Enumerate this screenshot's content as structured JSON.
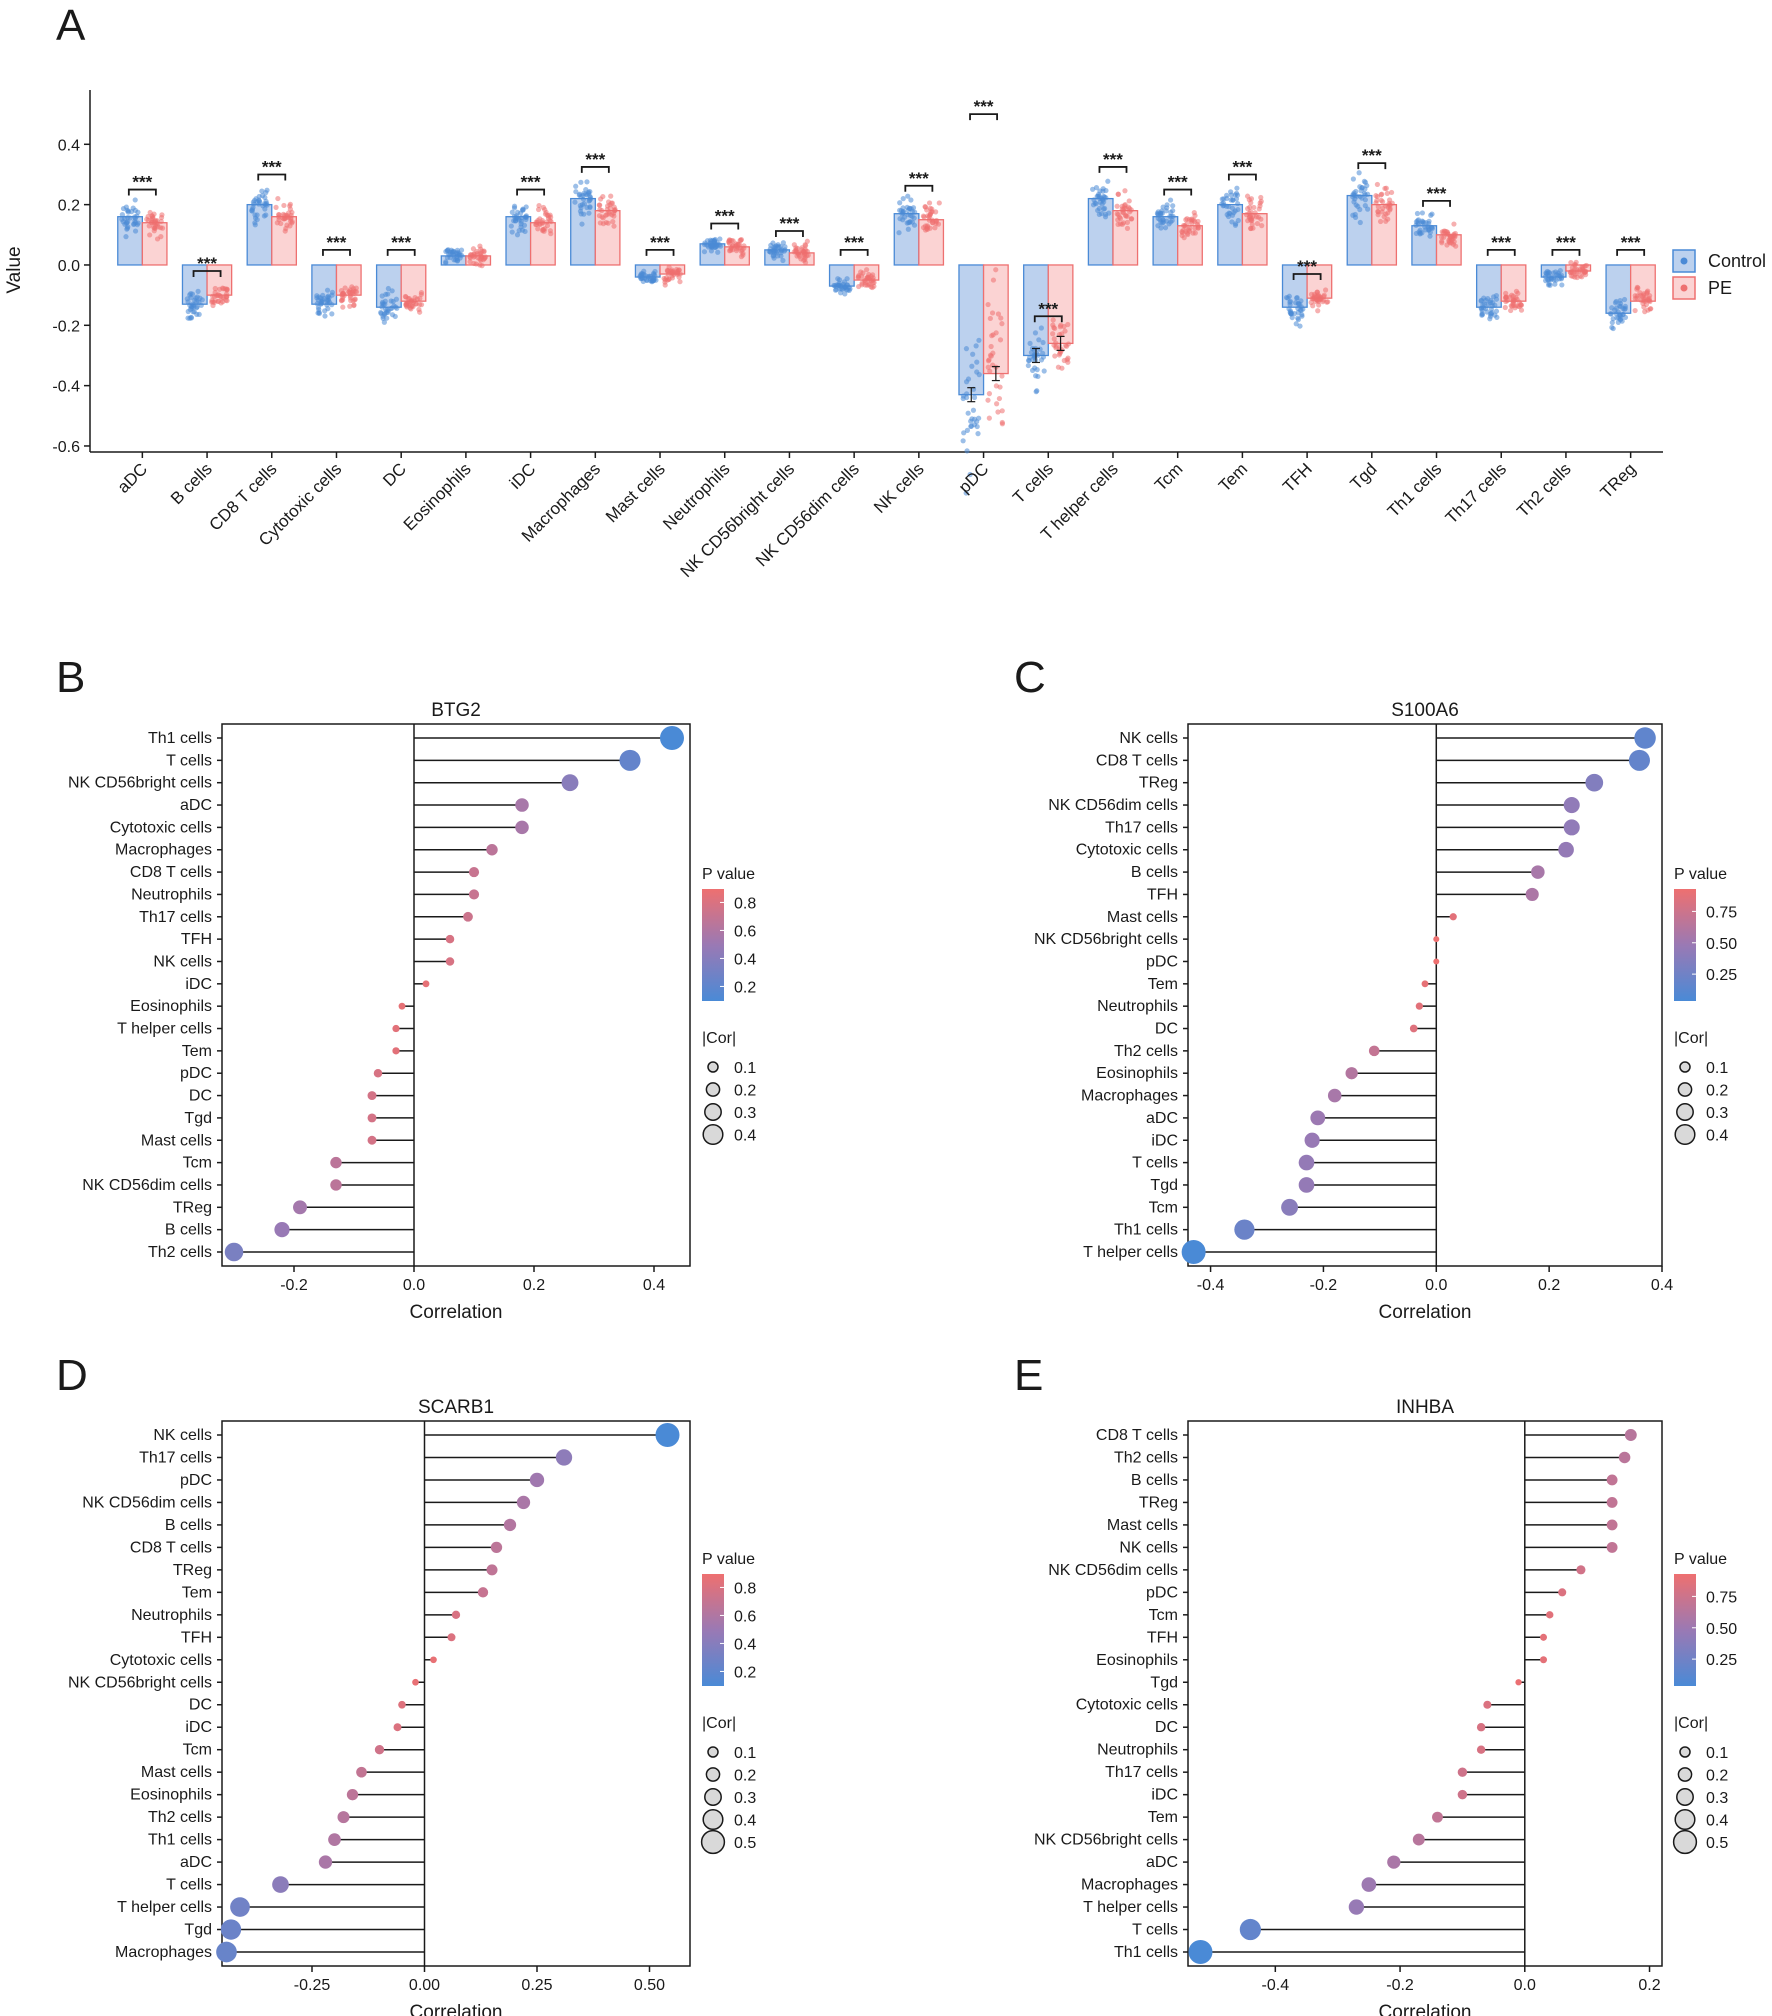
{
  "colors": {
    "control": "#4a8ad6",
    "pe": "#ee7070",
    "mid": "#9a79b4",
    "axis": "#1a1a1a"
  },
  "chart_data": [
    {
      "panel": "A",
      "type": "bar",
      "title": "",
      "xlabel": "",
      "ylabel": "Value",
      "ylim": [
        -0.62,
        0.58
      ],
      "yticks": [
        0.4,
        0.2,
        0.0,
        -0.2,
        -0.4,
        -0.6
      ],
      "ytick_labels": [
        "0.4",
        "0.2",
        "0.0",
        "-0.2",
        "-0.4",
        "-0.6"
      ],
      "significance_label": "***",
      "legend": [
        "Control",
        "PE"
      ],
      "categories": [
        "aDC",
        "B cells",
        "CD8 T cells",
        "Cytotoxic cells",
        "DC",
        "Eosinophils",
        "iDC",
        "Macrophages",
        "Mast cells",
        "Neutrophils",
        "NK CD56bright cells",
        "NK CD56dim cells",
        "NK cells",
        "pDC",
        "T cells",
        "T helper cells",
        "Tcm",
        "Tem",
        "TFH",
        "Tgd",
        "Th1 cells",
        "Th17 cells",
        "Th2 cells",
        "TReg"
      ],
      "significant": [
        true,
        true,
        true,
        true,
        true,
        false,
        true,
        true,
        true,
        true,
        true,
        true,
        true,
        true,
        true,
        true,
        true,
        true,
        true,
        true,
        true,
        true,
        true,
        true
      ],
      "series": [
        {
          "name": "Control",
          "values": [
            0.16,
            -0.13,
            0.2,
            -0.13,
            -0.14,
            0.03,
            0.16,
            0.22,
            -0.04,
            0.07,
            0.05,
            -0.07,
            0.17,
            -0.43,
            -0.3,
            0.22,
            0.16,
            0.2,
            -0.14,
            0.23,
            0.13,
            -0.14,
            -0.04,
            -0.16
          ]
        },
        {
          "name": "PE",
          "values": [
            0.14,
            -0.1,
            0.16,
            -0.1,
            -0.12,
            0.03,
            0.14,
            0.18,
            -0.03,
            0.06,
            0.04,
            -0.05,
            0.15,
            -0.36,
            -0.26,
            0.18,
            0.13,
            0.17,
            -0.11,
            0.2,
            0.1,
            -0.12,
            -0.02,
            -0.12
          ]
        }
      ]
    },
    {
      "panel": "B",
      "type": "lollipop",
      "title": "BTG2",
      "xlabel": "Correlation",
      "xlim": [
        -0.32,
        0.46
      ],
      "xticks": [
        -0.2,
        0.0,
        0.2,
        0.4
      ],
      "xtick_labels": [
        "-0.2",
        "0.0",
        "0.2",
        "0.4"
      ],
      "legend_p_title": "P value",
      "legend_p_ticks": [
        "0.8",
        "0.6",
        "0.4",
        "0.2"
      ],
      "legend_cor_title": "|Cor|",
      "legend_cor_ticks": [
        "0.1",
        "0.2",
        "0.3",
        "0.4"
      ],
      "categories": [
        "Th1 cells",
        "T cells",
        "NK CD56bright cells",
        "aDC",
        "Cytotoxic cells",
        "Macrophages",
        "CD8 T cells",
        "Neutrophils",
        "Th17 cells",
        "TFH",
        "NK cells",
        "iDC",
        "Eosinophils",
        "T helper cells",
        "Tem",
        "pDC",
        "DC",
        "Tgd",
        "Mast cells",
        "Tcm",
        "NK CD56dim cells",
        "TReg",
        "B cells",
        "Th2 cells"
      ],
      "values": [
        0.43,
        0.36,
        0.26,
        0.18,
        0.18,
        0.13,
        0.1,
        0.1,
        0.09,
        0.06,
        0.06,
        0.02,
        -0.02,
        -0.03,
        -0.03,
        -0.06,
        -0.07,
        -0.07,
        -0.07,
        -0.13,
        -0.13,
        -0.19,
        -0.22,
        -0.3
      ]
    },
    {
      "panel": "C",
      "type": "lollipop",
      "title": "S100A6",
      "xlabel": "Correlation",
      "xlim": [
        -0.44,
        0.4
      ],
      "xticks": [
        -0.4,
        -0.2,
        0.0,
        0.2,
        0.4
      ],
      "xtick_labels": [
        "-0.4",
        "-0.2",
        "0.0",
        "0.2",
        "0.4"
      ],
      "legend_p_title": "P value",
      "legend_p_ticks": [
        "0.75",
        "0.50",
        "0.25"
      ],
      "legend_cor_title": "|Cor|",
      "legend_cor_ticks": [
        "0.1",
        "0.2",
        "0.3",
        "0.4"
      ],
      "categories": [
        "NK cells",
        "CD8 T cells",
        "TReg",
        "NK CD56dim cells",
        "Th17 cells",
        "Cytotoxic cells",
        "B cells",
        "TFH",
        "Mast cells",
        "NK CD56bright cells",
        "pDC",
        "Tem",
        "Neutrophils",
        "DC",
        "Th2 cells",
        "Eosinophils",
        "Macrophages",
        "aDC",
        "iDC",
        "T cells",
        "Tgd",
        "Tcm",
        "Th1 cells",
        "T helper cells"
      ],
      "values": [
        0.37,
        0.36,
        0.28,
        0.24,
        0.24,
        0.23,
        0.18,
        0.17,
        0.03,
        0.0,
        0.0,
        -0.02,
        -0.03,
        -0.04,
        -0.11,
        -0.15,
        -0.18,
        -0.21,
        -0.22,
        -0.23,
        -0.23,
        -0.26,
        -0.34,
        -0.43
      ]
    },
    {
      "panel": "D",
      "type": "lollipop",
      "title": "SCARB1",
      "xlabel": "Correlation",
      "xlim": [
        -0.45,
        0.59
      ],
      "xticks": [
        -0.25,
        0.0,
        0.25,
        0.5
      ],
      "xtick_labels": [
        "-0.25",
        "0.00",
        "0.25",
        "0.50"
      ],
      "legend_p_title": "P value",
      "legend_p_ticks": [
        "0.8",
        "0.6",
        "0.4",
        "0.2"
      ],
      "legend_cor_title": "|Cor|",
      "legend_cor_ticks": [
        "0.1",
        "0.2",
        "0.3",
        "0.4",
        "0.5"
      ],
      "categories": [
        "NK cells",
        "Th17 cells",
        "pDC",
        "NK CD56dim cells",
        "B cells",
        "CD8 T cells",
        "TReg",
        "Tem",
        "Neutrophils",
        "TFH",
        "Cytotoxic cells",
        "NK CD56bright cells",
        "DC",
        "iDC",
        "Tcm",
        "Mast cells",
        "Eosinophils",
        "Th2 cells",
        "Th1 cells",
        "aDC",
        "T cells",
        "T helper cells",
        "Tgd",
        "Macrophages"
      ],
      "values": [
        0.54,
        0.31,
        0.25,
        0.22,
        0.19,
        0.16,
        0.15,
        0.13,
        0.07,
        0.06,
        0.02,
        -0.02,
        -0.05,
        -0.06,
        -0.1,
        -0.14,
        -0.16,
        -0.18,
        -0.2,
        -0.22,
        -0.32,
        -0.41,
        -0.43,
        -0.44
      ]
    },
    {
      "panel": "E",
      "type": "lollipop",
      "title": "INHBA",
      "xlabel": "Correlation",
      "xlim": [
        -0.54,
        0.22
      ],
      "xticks": [
        -0.4,
        -0.2,
        0.0,
        0.2
      ],
      "xtick_labels": [
        "-0.4",
        "-0.2",
        "0.0",
        "0.2"
      ],
      "legend_p_title": "P value",
      "legend_p_ticks": [
        "0.75",
        "0.50",
        "0.25"
      ],
      "legend_cor_title": "|Cor|",
      "legend_cor_ticks": [
        "0.1",
        "0.2",
        "0.3",
        "0.4",
        "0.5"
      ],
      "categories": [
        "CD8 T cells",
        "Th2 cells",
        "B cells",
        "TReg",
        "Mast cells",
        "NK cells",
        "NK CD56dim cells",
        "pDC",
        "Tcm",
        "TFH",
        "Eosinophils",
        "Tgd",
        "Cytotoxic cells",
        "DC",
        "Neutrophils",
        "Th17 cells",
        "iDC",
        "Tem",
        "NK CD56bright cells",
        "aDC",
        "Macrophages",
        "T helper cells",
        "T cells",
        "Th1 cells"
      ],
      "values": [
        0.17,
        0.16,
        0.14,
        0.14,
        0.14,
        0.14,
        0.09,
        0.06,
        0.04,
        0.03,
        0.03,
        -0.01,
        -0.06,
        -0.07,
        -0.07,
        -0.1,
        -0.1,
        -0.14,
        -0.17,
        -0.21,
        -0.25,
        -0.27,
        -0.44,
        -0.52
      ]
    }
  ]
}
